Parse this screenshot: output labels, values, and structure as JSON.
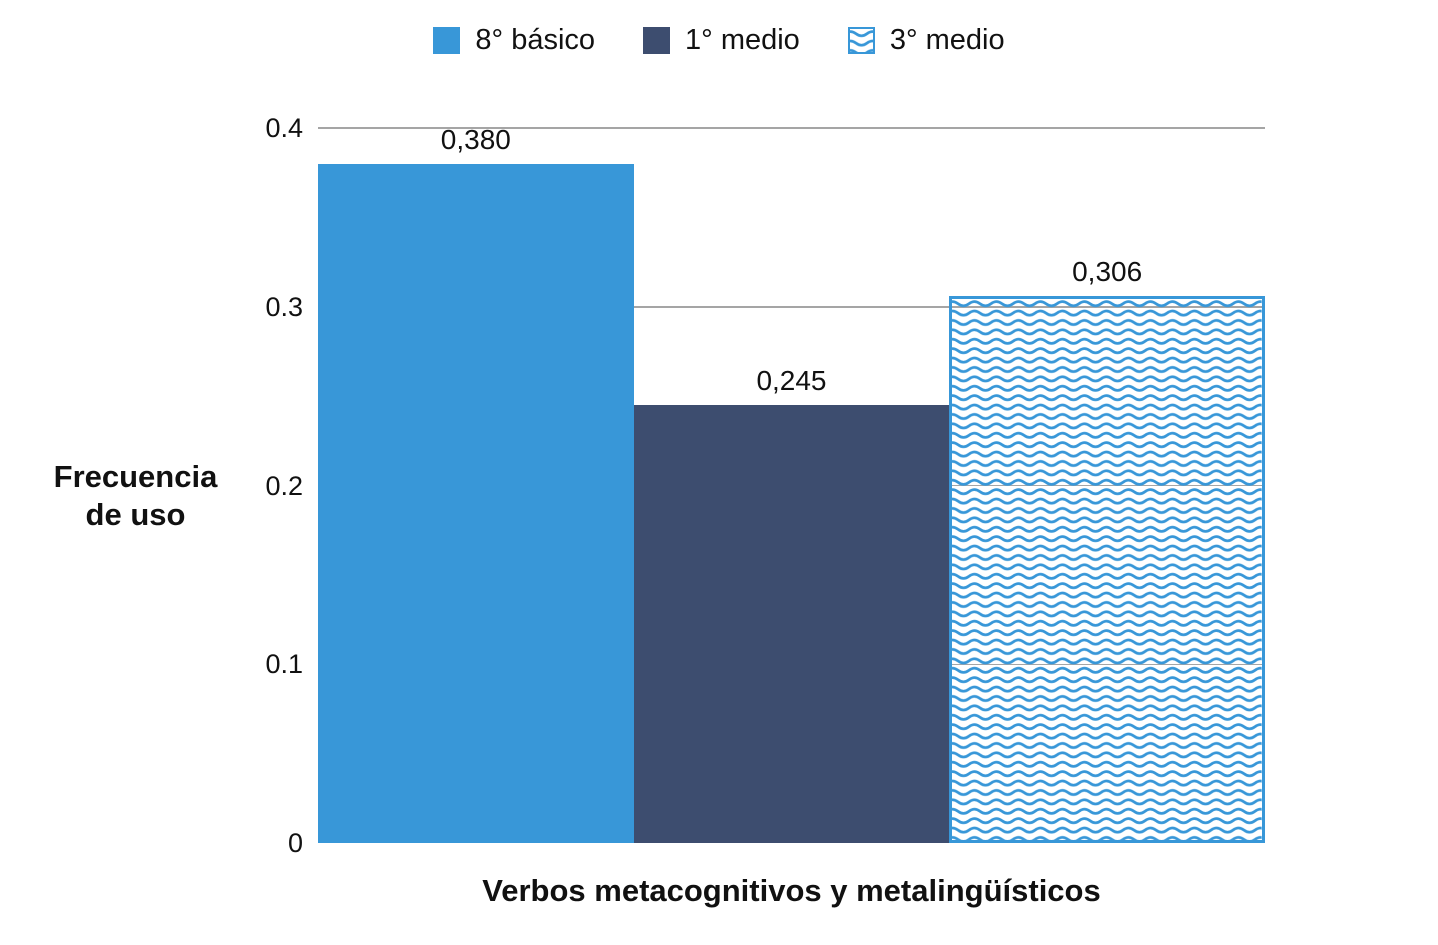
{
  "chart_data": {
    "type": "bar",
    "title": "",
    "categories": [
      "Verbos metacognitivos y metalingüísticos"
    ],
    "series": [
      {
        "name": "8° básico",
        "values": [
          0.38
        ],
        "value_labels": [
          "0,380"
        ],
        "fill": "solid",
        "color": "#3897D8"
      },
      {
        "name": "1° medio",
        "values": [
          0.245
        ],
        "value_labels": [
          "0,245"
        ],
        "fill": "solid",
        "color": "#3D4D6F"
      },
      {
        "name": "3° medio",
        "values": [
          0.306
        ],
        "value_labels": [
          "0,306"
        ],
        "fill": "wave-pattern",
        "color": "#3897D8"
      }
    ],
    "xlabel": "Verbos metacognitivos y metalingüísticos",
    "ylabel": "Frecuencia de uso",
    "ylabel_lines": [
      "Frecuencia",
      "de uso"
    ],
    "ylim": [
      0,
      0.4
    ],
    "yticks": [
      {
        "value": 0.4,
        "label": "0.4"
      },
      {
        "value": 0.3,
        "label": "0.3"
      },
      {
        "value": 0.2,
        "label": "0.2"
      },
      {
        "value": 0.1,
        "label": "0.1"
      },
      {
        "value": 0,
        "label": "0"
      }
    ],
    "grid": true,
    "legend_position": "top",
    "colors": {
      "grid": "#A5A5A5",
      "text": "#111111",
      "background": "#FFFFFF"
    }
  }
}
